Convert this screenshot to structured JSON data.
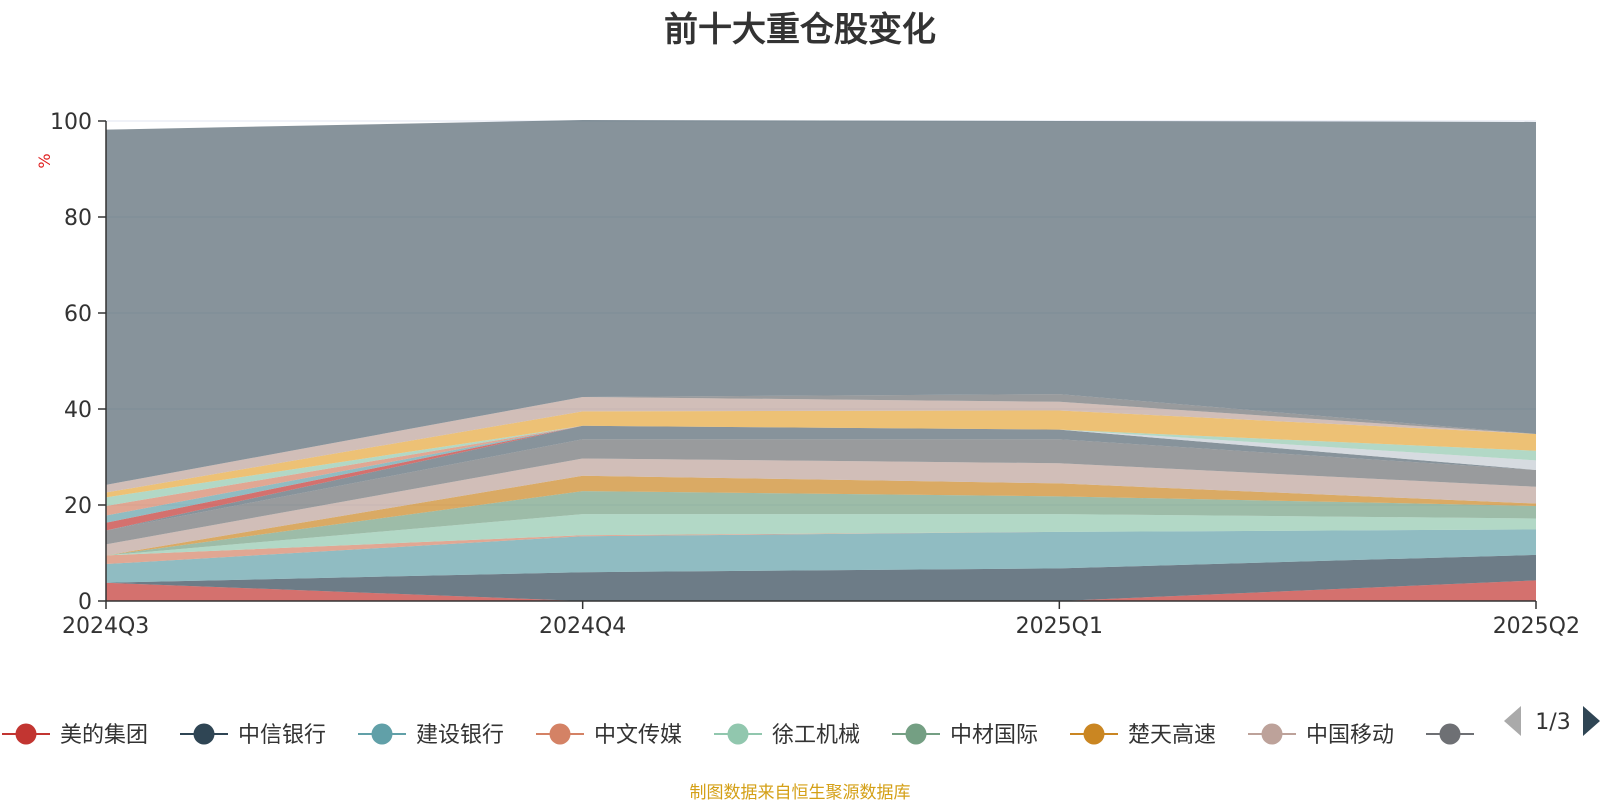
{
  "title": "前十大重仓股变化",
  "source_note": "制图数据来自恒生聚源数据库",
  "legend_pager": {
    "text": "1/3"
  },
  "chart_data": {
    "type": "area",
    "stacked": true,
    "title": "前十大重仓股变化",
    "xlabel": "",
    "ylabel": "%",
    "ylim": [
      0,
      100
    ],
    "yticks": [
      0,
      20,
      40,
      60,
      80,
      100
    ],
    "categories": [
      "2024Q3",
      "2024Q4",
      "2025Q1",
      "2025Q2"
    ],
    "grid": true,
    "legend_position": "bottom",
    "series": [
      {
        "name": "美的集团",
        "color": "#c23531",
        "values": [
          3.8,
          0,
          0,
          4.3
        ]
      },
      {
        "name": "中信银行",
        "color": "#2f4554",
        "values": [
          0,
          6.0,
          6.8,
          5.3
        ]
      },
      {
        "name": "建设银行",
        "color": "#61a0a8",
        "values": [
          3.9,
          7.5,
          7.6,
          5.3
        ]
      },
      {
        "name": "中文传媒",
        "color": "#d48265",
        "values": [
          1.8,
          0.2,
          0,
          0
        ]
      },
      {
        "name": "徐工机械",
        "color": "#91c7ae",
        "values": [
          0,
          4.4,
          3.7,
          2.3
        ]
      },
      {
        "name": "中材国际",
        "color": "#749f83",
        "values": [
          0,
          4.8,
          3.7,
          2.6
        ]
      },
      {
        "name": "楚天高速",
        "color": "#ca8622",
        "values": [
          0,
          3.2,
          2.7,
          0.5
        ]
      },
      {
        "name": "中国移动",
        "color": "#bda29a",
        "values": [
          2.3,
          3.6,
          4.2,
          3.5
        ]
      },
      {
        "name": "",
        "color": "#6e7074",
        "values": [
          2.9,
          4.0,
          5.0,
          3.5
        ]
      },
      {
        "name": "",
        "color": "#546570",
        "values": [
          0,
          2.8,
          2.0,
          0
        ]
      },
      {
        "name": "",
        "color": "#c4ccd3",
        "values": [
          0,
          0,
          0,
          2.0
        ]
      },
      {
        "name": "",
        "color": "#c23531",
        "values": [
          1.6,
          0,
          0,
          0
        ]
      },
      {
        "name": "",
        "color": "#61a0a8",
        "values": [
          1.5,
          0,
          0,
          0
        ]
      },
      {
        "name": "",
        "color": "#d48265",
        "values": [
          2.0,
          0,
          0,
          0
        ]
      },
      {
        "name": "",
        "color": "#91c7ae",
        "values": [
          1.8,
          0,
          0,
          2.0
        ]
      },
      {
        "name": "",
        "color": "#e5a73b",
        "values": [
          1.0,
          3.0,
          4.0,
          3.5
        ]
      },
      {
        "name": "",
        "color": "#bda29a",
        "values": [
          1.6,
          3.0,
          1.8,
          0
        ]
      },
      {
        "name": "",
        "color": "#6e7074",
        "values": [
          0,
          0,
          1.6,
          0
        ]
      },
      {
        "name": "",
        "color": "#546570",
        "values": [
          74.0,
          57.7,
          56.9,
          65.0
        ]
      }
    ]
  }
}
